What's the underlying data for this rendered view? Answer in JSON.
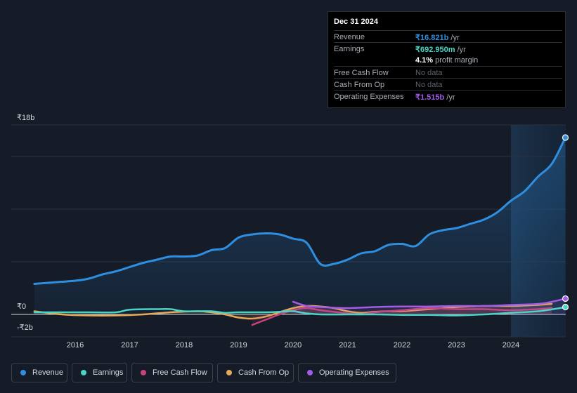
{
  "tooltip": {
    "date": "Dec 31 2024",
    "rows": [
      {
        "label": "Revenue",
        "value": "₹16.821b",
        "unit": "/yr",
        "color": "#2e8fe0"
      },
      {
        "label": "Earnings",
        "value": "₹692.950m",
        "unit": "/yr",
        "color": "#49d5c5"
      },
      {
        "label": "",
        "value": "4.1%",
        "unit": "profit margin",
        "color": "#ffffff"
      },
      {
        "label": "Free Cash Flow",
        "value": "No data",
        "unit": "",
        "color": "#5d636c"
      },
      {
        "label": "Cash From Op",
        "value": "No data",
        "unit": "",
        "color": "#5d636c"
      },
      {
        "label": "Operating Expenses",
        "value": "₹1.515b",
        "unit": "/yr",
        "color": "#a25ce6"
      }
    ]
  },
  "legend": [
    {
      "label": "Revenue",
      "color": "#2e8fe0"
    },
    {
      "label": "Earnings",
      "color": "#49d5c5"
    },
    {
      "label": "Free Cash Flow",
      "color": "#c6447b"
    },
    {
      "label": "Cash From Op",
      "color": "#e8a95a"
    },
    {
      "label": "Operating Expenses",
      "color": "#a25ce6"
    }
  ],
  "chart_data": {
    "type": "line",
    "ylabel_top": "₹18b",
    "ylabel_zero": "₹0",
    "ylabel_bottom": "-₹2b",
    "ylim": [
      -2,
      18
    ],
    "x_ticks": [
      "2016",
      "2017",
      "2018",
      "2019",
      "2020",
      "2021",
      "2022",
      "2023",
      "2024"
    ],
    "x_tick_values": [
      2016,
      2017,
      2018,
      2019,
      2020,
      2021,
      2022,
      2023,
      2024
    ],
    "xlim": [
      2015.2,
      2025.0
    ],
    "forecast_start": 2024.0,
    "series": [
      {
        "name": "Revenue",
        "color": "#2e8fe0",
        "fill": true,
        "x": [
          2015.25,
          2015.5,
          2015.75,
          2016.0,
          2016.25,
          2016.5,
          2016.75,
          2017.0,
          2017.25,
          2017.5,
          2017.75,
          2018.0,
          2018.25,
          2018.5,
          2018.75,
          2019.0,
          2019.25,
          2019.5,
          2019.75,
          2020.0,
          2020.25,
          2020.5,
          2020.75,
          2021.0,
          2021.25,
          2021.5,
          2021.75,
          2022.0,
          2022.25,
          2022.5,
          2022.75,
          2023.0,
          2023.25,
          2023.5,
          2023.75,
          2024.0,
          2024.25,
          2024.5,
          2024.75,
          2025.0
        ],
        "values": [
          2.9,
          3.0,
          3.1,
          3.2,
          3.4,
          3.8,
          4.1,
          4.5,
          4.9,
          5.2,
          5.5,
          5.5,
          5.6,
          6.1,
          6.3,
          7.3,
          7.6,
          7.7,
          7.6,
          7.2,
          6.8,
          4.8,
          4.8,
          5.2,
          5.8,
          6.0,
          6.6,
          6.7,
          6.5,
          7.6,
          8.0,
          8.2,
          8.6,
          9.0,
          9.7,
          10.8,
          11.7,
          13.1,
          14.3,
          16.8
        ]
      },
      {
        "name": "Earnings",
        "color": "#49d5c5",
        "x": [
          2015.25,
          2015.75,
          2016.25,
          2016.75,
          2017.0,
          2017.5,
          2017.75,
          2018.0,
          2018.5,
          2018.75,
          2019.0,
          2019.5,
          2019.75,
          2020.0,
          2020.25,
          2020.5,
          2021.0,
          2021.5,
          2022.0,
          2022.5,
          2023.0,
          2023.5,
          2024.0,
          2024.5,
          2024.9,
          2025.0
        ],
        "values": [
          0.2,
          0.2,
          0.2,
          0.2,
          0.45,
          0.5,
          0.5,
          0.3,
          0.3,
          0.15,
          0.2,
          0.2,
          0.25,
          0.3,
          0.1,
          0.0,
          0.0,
          0.0,
          -0.05,
          -0.05,
          -0.1,
          0.0,
          0.15,
          0.3,
          0.6,
          0.7
        ]
      },
      {
        "name": "Free Cash Flow",
        "color": "#c6447b",
        "x": [
          2019.25,
          2019.5,
          2019.75,
          2020.0,
          2020.25,
          2020.5,
          2021.0,
          2021.25,
          2021.5,
          2022.0,
          2022.5,
          2023.0,
          2023.5,
          2024.0,
          2024.5,
          2024.75
        ],
        "values": [
          -1.0,
          -0.5,
          0.0,
          0.4,
          0.6,
          0.4,
          0.1,
          0.0,
          0.2,
          0.4,
          0.6,
          0.5,
          0.5,
          0.4,
          0.5,
          0.6
        ]
      },
      {
        "name": "Cash From Op",
        "color": "#e8a95a",
        "x": [
          2015.25,
          2015.75,
          2016.25,
          2016.75,
          2017.25,
          2017.75,
          2018.25,
          2018.5,
          2018.75,
          2019.0,
          2019.25,
          2019.5,
          2019.75,
          2020.0,
          2020.25,
          2020.5,
          2020.75,
          2021.0,
          2021.25,
          2021.5,
          2021.75,
          2022.0,
          2022.5,
          2023.0,
          2023.5,
          2024.0,
          2024.5,
          2024.75
        ],
        "values": [
          0.3,
          0.0,
          -0.1,
          -0.1,
          0.0,
          0.2,
          0.3,
          0.2,
          0.0,
          -0.3,
          -0.4,
          -0.2,
          0.2,
          0.6,
          0.8,
          0.75,
          0.6,
          0.3,
          0.15,
          0.25,
          0.3,
          0.3,
          0.5,
          0.7,
          0.8,
          0.8,
          0.9,
          1.0
        ]
      },
      {
        "name": "Operating Expenses",
        "color": "#a25ce6",
        "x": [
          2020.0,
          2020.25,
          2020.5,
          2021.0,
          2021.5,
          2022.0,
          2022.5,
          2023.0,
          2023.5,
          2024.0,
          2024.5,
          2024.75,
          2025.0
        ],
        "values": [
          1.2,
          0.8,
          0.7,
          0.6,
          0.7,
          0.75,
          0.75,
          0.8,
          0.8,
          0.9,
          1.0,
          1.2,
          1.5
        ]
      }
    ]
  }
}
